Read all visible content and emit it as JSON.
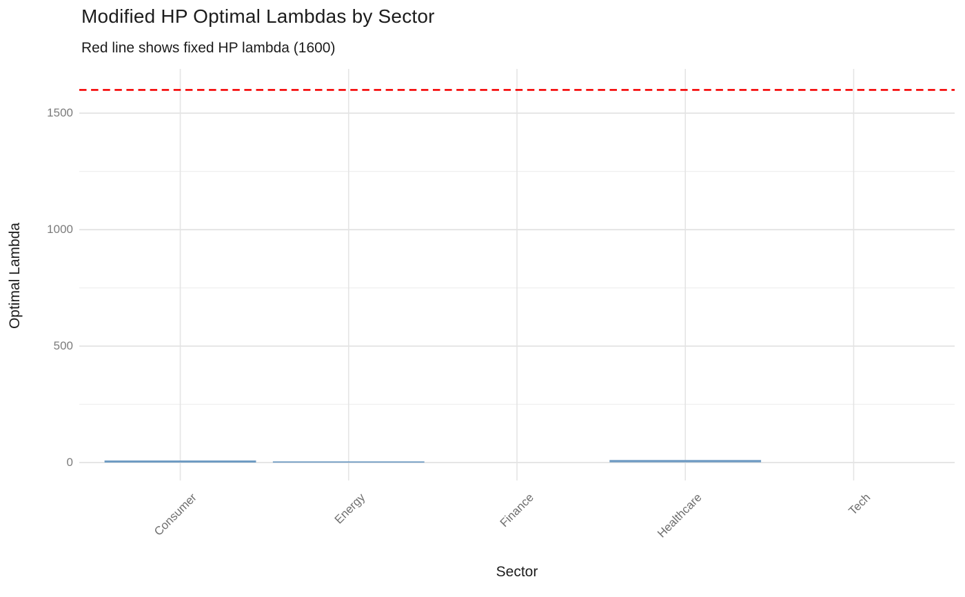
{
  "chart_data": {
    "type": "box",
    "title": "Modified HP Optimal Lambdas by Sector",
    "subtitle": "Red line shows fixed HP lambda (1600)",
    "xlabel": "Sector",
    "ylabel": "Optimal Lambda",
    "categories": [
      "Consumer",
      "Energy",
      "Finance",
      "Healthcare",
      "Tech"
    ],
    "y_major_ticks": [
      0,
      500,
      1000,
      1500
    ],
    "y_minor_ticks": [
      250,
      750,
      1250
    ],
    "ylim": [
      -77,
      1690
    ],
    "grid": true,
    "legend": "none",
    "reference_line": {
      "value": 1600,
      "style": "dashed",
      "color": "#f40000",
      "meaning": "fixed HP lambda (1600)"
    },
    "boxes": [
      {
        "sector": "Consumer",
        "visible": true,
        "min": 0,
        "q1": 1,
        "median": 4,
        "q3": 7,
        "max": 9
      },
      {
        "sector": "Energy",
        "visible": true,
        "min": 0,
        "q1": 0,
        "median": 2,
        "q3": 4,
        "max": 5
      },
      {
        "sector": "Finance",
        "visible": false,
        "min": 0,
        "q1": 0,
        "median": 0,
        "q3": 0,
        "max": 0
      },
      {
        "sector": "Healthcare",
        "visible": true,
        "min": 1,
        "q1": 3,
        "median": 6,
        "q3": 9,
        "max": 11
      },
      {
        "sector": "Tech",
        "visible": false,
        "min": 0,
        "q1": 0,
        "median": 0,
        "q3": 0,
        "max": 0
      }
    ],
    "colors": {
      "box": "#6f9bc3",
      "reference_line": "#f40000",
      "major_grid": "#e4e4e4",
      "minor_grid": "#efefef",
      "tick_label": "#757575",
      "text": "#1c1c1c"
    }
  }
}
